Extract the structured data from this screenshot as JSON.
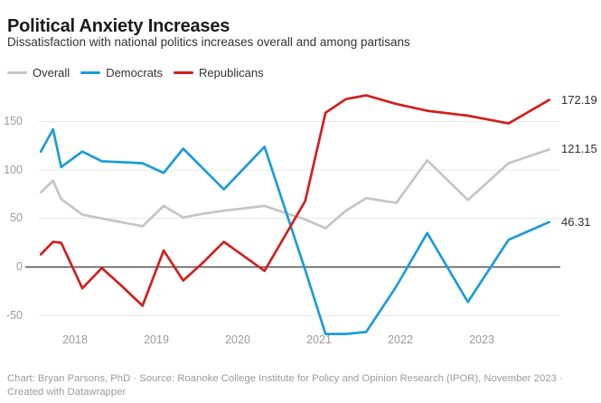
{
  "chart_data": {
    "type": "line",
    "title": "Political Anxiety Increases",
    "subtitle": "Dissatisfaction with national politics increases overall and among partisans",
    "xlabel": "",
    "ylabel": "",
    "x": [
      2017.58,
      2017.73,
      2017.83,
      2018.09,
      2018.33,
      2018.58,
      2018.83,
      2019.09,
      2019.33,
      2019.58,
      2019.83,
      2020.33,
      2020.83,
      2021.08,
      2021.33,
      2021.58,
      2021.95,
      2022.33,
      2022.83,
      2023.33,
      2023.83
    ],
    "x_point_labels": [
      "Aug 2017",
      "Oct 2017",
      "Nov 2017",
      "Feb 2018",
      "May 2018",
      "Aug 2018",
      "Nov 2018",
      "Feb 2019",
      "May 2019",
      "Aug 2019",
      "Nov 2019",
      "May 2020",
      "Nov 2020",
      "Feb 2021",
      "May 2021",
      "Aug 2021",
      "Dec 2021",
      "May 2022",
      "Nov 2022",
      "May 2023",
      "Nov 2023"
    ],
    "series": [
      {
        "name": "Overall",
        "color": "#c5c5c5",
        "end_label": "121.15",
        "values": [
          77,
          89,
          70,
          54,
          50,
          46,
          42,
          63,
          51,
          55,
          58,
          63,
          49,
          40,
          58,
          71,
          66,
          110,
          69,
          107,
          121.15
        ]
      },
      {
        "name": "Democrats",
        "color": "#1d9cd8",
        "end_label": "46.31",
        "values": [
          119,
          142,
          103,
          119,
          109,
          108,
          107,
          97,
          122,
          101,
          80,
          124,
          -3,
          -69,
          -69,
          -67,
          -20,
          35,
          -36,
          28,
          46.31
        ]
      },
      {
        "name": "Republicans",
        "color": "#d0201f",
        "end_label": "172.19",
        "values": [
          13,
          26,
          25,
          -22,
          -1,
          -20,
          -40,
          17,
          -14,
          5,
          26,
          -4,
          68,
          159,
          173,
          177,
          168,
          161,
          156,
          148,
          172.19
        ]
      }
    ],
    "y_tick_values": [
      150,
      100,
      50,
      0,
      -50
    ],
    "y_tick_labels": [
      "150",
      "100",
      "50",
      "0",
      "-50"
    ],
    "x_tick_values": [
      2018,
      2019,
      2020,
      2021,
      2022,
      2023
    ],
    "x_tick_labels": [
      "2018",
      "2019",
      "2020",
      "2021",
      "2022",
      "2023"
    ],
    "ylim": [
      -78,
      184
    ],
    "grid": "horizontal",
    "zero_line": true,
    "legend_position": "top-left"
  },
  "colors": {
    "gridline": "#e6e6e6",
    "zero_line": "#4d4d4d",
    "tick_text": "#9b9b9b"
  },
  "footer": {
    "line1": "Chart: Bryan Parsons, PhD · Source: Roanoke College Institute for Policy and Opinion Research (IPOR), November 2023 ·",
    "line2": "Created with Datawrapper"
  }
}
